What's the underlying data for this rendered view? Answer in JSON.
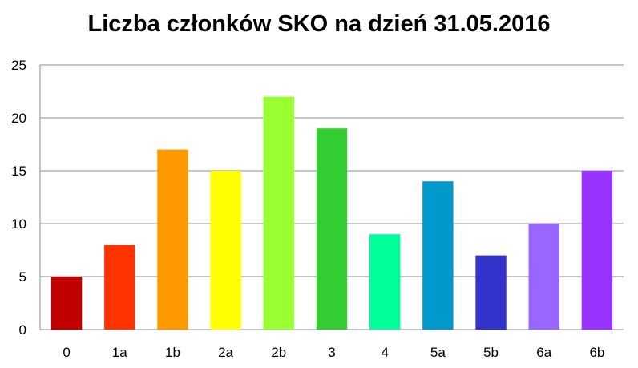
{
  "chart_data": {
    "type": "bar",
    "title": "Liczba członków SKO na dzień 31.05.2016",
    "xlabel": "",
    "ylabel": "",
    "ylim": [
      0,
      25
    ],
    "yticks": [
      0,
      5,
      10,
      15,
      20,
      25
    ],
    "grid": true,
    "legend": "none",
    "categories": [
      "0",
      "1a",
      "1b",
      "2a",
      "2b",
      "3",
      "4",
      "5a",
      "5b",
      "6a",
      "6b"
    ],
    "values": [
      5,
      8,
      17,
      15,
      22,
      19,
      9,
      14,
      7,
      10,
      15
    ],
    "colors": [
      "#c00000",
      "#ff3300",
      "#ff9900",
      "#ffff00",
      "#99ff33",
      "#33cc33",
      "#00ff99",
      "#0099cc",
      "#3333cc",
      "#9966ff",
      "#9933ff"
    ]
  }
}
